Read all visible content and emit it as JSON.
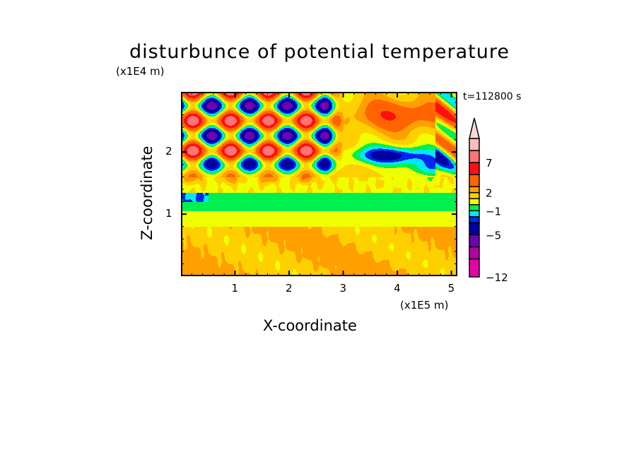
{
  "chart_data": {
    "type": "heatmap",
    "subtype": "filled-contour",
    "title": "disturbunce of potential temperature",
    "xlabel": "X-coordinate",
    "ylabel": "Z-coordinate",
    "x_unit_label": "(x1E5 m)",
    "y_unit_label": "(x1E4 m)",
    "annotation": "t=112800 s",
    "xlim": [
      0,
      5.11
    ],
    "ylim": [
      0,
      2.97
    ],
    "x_ticks": [
      1,
      2,
      3,
      4,
      5
    ],
    "x_tick_labels": [
      "1",
      "2",
      "3",
      "4",
      "5"
    ],
    "y_ticks": [
      1,
      2
    ],
    "y_tick_labels": [
      "1",
      "2"
    ],
    "minor_tick_step": 0.2,
    "colorbar": {
      "levels": [
        -12,
        -9,
        -7,
        -5,
        -3,
        -2,
        -1,
        0,
        1,
        2,
        3,
        5,
        7,
        9,
        11
      ],
      "labeled_levels": [
        -12,
        -5,
        -1,
        2,
        7
      ],
      "labels": [
        "-12",
        "-5",
        "-1",
        "2",
        "7"
      ],
      "extend": "max",
      "colors": [
        "#e800a8",
        "#b400a8",
        "#7000b0",
        "#0000a0",
        "#0028f0",
        "#00e8f8",
        "#00f050",
        "#f0ff00",
        "#ffd000",
        "#ffa000",
        "#ff6400",
        "#ff1010",
        "#ff7474",
        "#ffbcbc"
      ],
      "extend_color": "#ffd8d4"
    },
    "field_description_regions": [
      {
        "z_range": [
          0,
          0.8
        ],
        "typical_value_range": [
          1,
          3
        ]
      },
      {
        "z_range": [
          0.8,
          1.05
        ],
        "typical_value_range": [
          0,
          1
        ]
      },
      {
        "z_range": [
          1.05,
          1.35
        ],
        "typical_value_range": [
          -1,
          0
        ]
      },
      {
        "z_range": [
          1.6,
          2.97
        ],
        "typical_value_range": [
          -7,
          7
        ]
      }
    ]
  }
}
